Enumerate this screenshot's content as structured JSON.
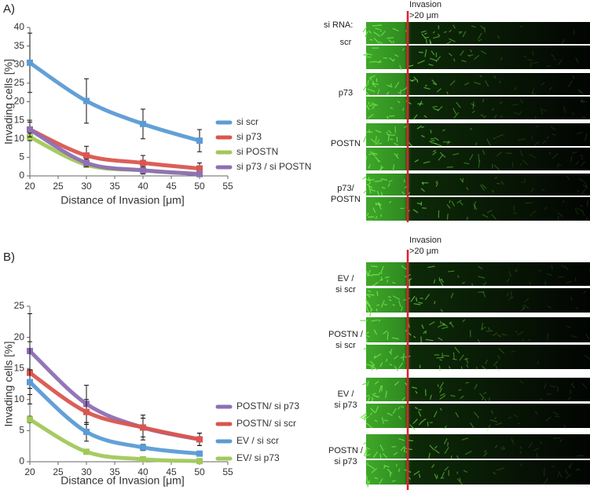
{
  "chart_data": [
    {
      "type": "line",
      "panel": "A)",
      "ylabel": "Invading cells [%]",
      "xlabel": "Distance of Invasion [μm]",
      "xlim": [
        20,
        55
      ],
      "xticks": [
        20,
        25,
        30,
        35,
        40,
        45,
        50,
        55
      ],
      "ylim": [
        0,
        40
      ],
      "yticks": [
        0,
        5,
        10,
        15,
        20,
        25,
        30,
        35,
        40
      ],
      "x": [
        20,
        30,
        40,
        50
      ],
      "series": [
        {
          "name": "si scr",
          "color": "#5b9bd5",
          "values": [
            30.5,
            20.2,
            14,
            9.5
          ],
          "errors": [
            8,
            6,
            4,
            3
          ]
        },
        {
          "name": "si p73",
          "color": "#d9564f",
          "values": [
            12.5,
            5.5,
            3.5,
            2
          ],
          "errors": [
            2.5,
            2.5,
            2,
            1.5
          ]
        },
        {
          "name": "si POSTN",
          "color": "#a2c85a",
          "values": [
            10.5,
            3,
            1.5,
            0.5
          ],
          "errors": [
            1,
            0.5,
            0.5,
            0.3
          ]
        },
        {
          "name": "si p73 / si POSTN",
          "color": "#8e6fb5",
          "values": [
            12.5,
            3.5,
            1.5,
            0.5
          ],
          "errors": [
            2,
            1,
            1,
            0.5
          ]
        }
      ],
      "image_header": "si RNA:",
      "marker_label": [
        "Invasion",
        ">20 μm"
      ],
      "image_rows": [
        [
          "scr"
        ],
        [
          "p73"
        ],
        [
          "POSTN"
        ],
        [
          "p73/",
          "POSTN"
        ]
      ]
    },
    {
      "type": "line",
      "panel": "B)",
      "ylabel": "Invading cells [%]",
      "xlabel": "Distance of Invasion [μm]",
      "xlim": [
        20,
        55
      ],
      "xticks": [
        20,
        25,
        30,
        35,
        40,
        45,
        50,
        55
      ],
      "ylim": [
        0,
        25
      ],
      "yticks": [
        0,
        5,
        10,
        15,
        20,
        25
      ],
      "x": [
        20,
        30,
        40,
        50
      ],
      "series": [
        {
          "name": "POSTN/ si p73",
          "color": "#8e6fb5",
          "values": [
            17.8,
            9.3,
            5.5,
            3.6
          ],
          "errors": [
            6,
            3,
            2,
            1
          ]
        },
        {
          "name": "POSTN/ si scr",
          "color": "#d9564f",
          "values": [
            14.3,
            8,
            5.5,
            3.6
          ],
          "errors": [
            5,
            2,
            1.5,
            1
          ]
        },
        {
          "name": "EV / si scr",
          "color": "#5b9bd5",
          "values": [
            12.8,
            4.8,
            2.3,
            1.3
          ],
          "errors": [
            2,
            1.5,
            0.5,
            0.3
          ]
        },
        {
          "name": "EV/ si p73",
          "color": "#a2c85a",
          "values": [
            6.8,
            1.6,
            0.4,
            0.1
          ],
          "errors": [
            0.5,
            0.3,
            0.2,
            0.1
          ]
        }
      ],
      "marker_label": [
        "Invasion",
        ">20 μm"
      ],
      "image_rows": [
        [
          "EV /",
          "si scr"
        ],
        [
          "POSTN /",
          "si scr"
        ],
        [
          "EV /",
          "si p73"
        ],
        [
          "POSTN /",
          "si p73"
        ]
      ]
    }
  ]
}
